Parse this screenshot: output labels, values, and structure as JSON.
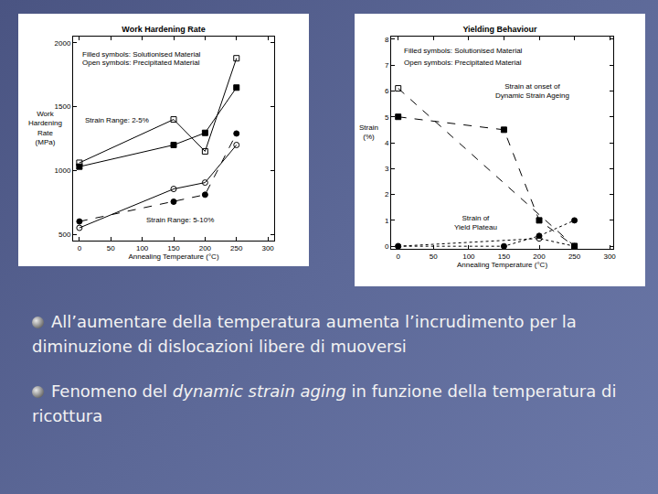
{
  "chart_data": [
    {
      "type": "line",
      "title": "Work Hardening Rate",
      "x_label": "Annealing Temperature (°C)",
      "y_label": [
        "Work",
        "Hardening",
        "Rate",
        "(MPa)"
      ],
      "xlim": [
        -10,
        310
      ],
      "xticks": [
        0,
        50,
        100,
        150,
        200,
        250,
        300
      ],
      "ylim": [
        450,
        2050
      ],
      "yticks": [
        500,
        1000,
        1500,
        2000
      ],
      "grid": false,
      "notes": [
        [
          "Filled symbols: Solutionised Material"
        ],
        [
          "Open symbols: Precipitated Material"
        ],
        [
          "Strain Range: 2-5%"
        ],
        [
          "Strain Range: 5-10%"
        ]
      ],
      "series": [
        {
          "x": [
            0,
            150,
            200,
            250
          ],
          "values": [
            1030,
            1200,
            1295,
            1650
          ],
          "marker": "square",
          "color": "#000000",
          "line_style": "solid"
        },
        {
          "x": [
            0,
            150,
            200,
            250
          ],
          "values": [
            1060,
            1400,
            1150,
            1880
          ],
          "marker": "square-open",
          "color": "#000000",
          "line_style": "solid"
        },
        {
          "x": [
            0,
            150,
            200,
            250
          ],
          "values": [
            600,
            755,
            810,
            1290
          ],
          "marker": "circle",
          "color": "#000000",
          "line_style": "dashed"
        },
        {
          "x": [
            0,
            150,
            200,
            250
          ],
          "values": [
            550,
            855,
            905,
            1200
          ],
          "marker": "circle-open",
          "color": "#000000",
          "line_style": "solid"
        }
      ]
    },
    {
      "type": "line",
      "title": "Yielding Behaviour",
      "x_label": "Annealing Temperature (°C)",
      "y_label": [
        "Strain",
        "(%)"
      ],
      "xlim": [
        -10,
        305
      ],
      "xticks": [
        0,
        50,
        100,
        150,
        200,
        250,
        300
      ],
      "ylim": [
        -0.1,
        8.1
      ],
      "yticks": [
        0,
        1,
        2,
        3,
        4,
        5,
        6,
        7,
        8
      ],
      "grid": false,
      "notes": [
        [
          "Filled symbols: Solutionised Material"
        ],
        [
          "Open symbols: Precipitated Material"
        ],
        [
          "Strain at onset of",
          "Dynamic Strain Ageing"
        ],
        [
          "Strain of",
          "Yield Plateau"
        ]
      ],
      "series": [
        {
          "x": [
            0,
            150,
            200,
            250
          ],
          "values": [
            5.0,
            4.5,
            1.0,
            0
          ],
          "marker": "square",
          "color": "#000000",
          "line_style": "dashed"
        },
        {
          "x": [
            0,
            250
          ],
          "values": [
            6.1,
            0
          ],
          "marker": "square-open",
          "color": "#000000",
          "line_style": "dashed"
        },
        {
          "x": [
            0,
            150,
            200,
            250
          ],
          "values": [
            0,
            0,
            0.4,
            1.0
          ],
          "marker": "circle",
          "color": "#000000",
          "line_style": "dotted"
        },
        {
          "x": [
            0,
            200,
            250
          ],
          "values": [
            0,
            0.3,
            0
          ],
          "marker": "circle-open",
          "color": "#000000",
          "line_style": "dotted"
        }
      ]
    }
  ],
  "bullets": [
    [
      {
        "text": "All’aumentare della temperatura aumenta l’incrudimento per la diminuzione di dislocazioni libere di muoversi"
      }
    ],
    [
      {
        "text": "Fenomeno del "
      },
      {
        "text": "dynamic strain aging",
        "style": "italic"
      },
      {
        "text": " in funzione della temperatura di ricottura"
      }
    ]
  ]
}
